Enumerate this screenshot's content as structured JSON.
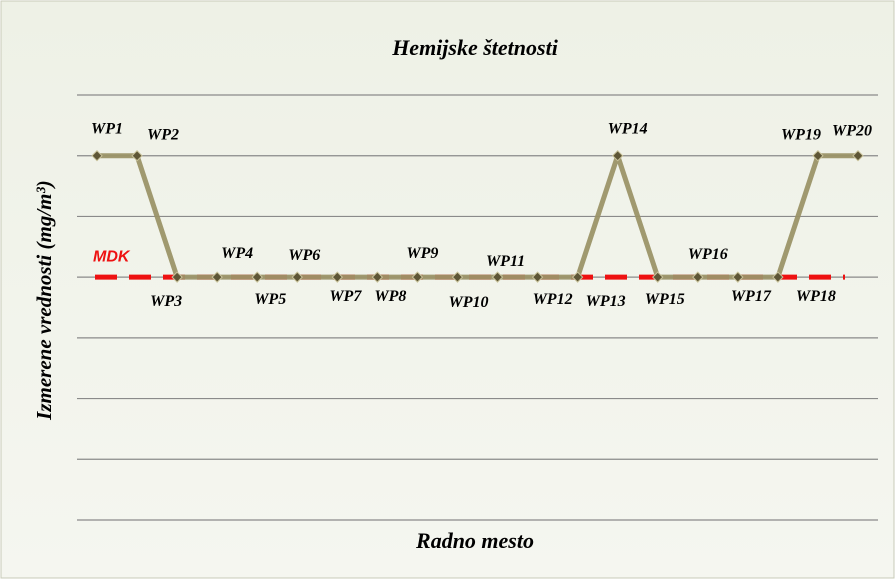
{
  "chart_data": {
    "type": "line",
    "title": "Hemijske štetnosti",
    "xlabel": "Radno mesto",
    "ylabel": "Izmerene vrednosti (mg/m³)",
    "categories": [
      "WP1",
      "WP2",
      "WP3",
      "WP4",
      "WP5",
      "WP6",
      "WP7",
      "WP8",
      "WP9",
      "WP10",
      "WP11",
      "WP12",
      "WP13",
      "WP14",
      "WP15",
      "WP16",
      "WP17",
      "WP18",
      "WP19",
      "WP20"
    ],
    "values": [
      6,
      6,
      4,
      4,
      4,
      4,
      4,
      4,
      4,
      4,
      4,
      4,
      4,
      6,
      4,
      4,
      4,
      4,
      6,
      6
    ],
    "color": "#9b9468",
    "marker_color": "#5e5636",
    "ylim": [
      0,
      7
    ],
    "yticks": [
      0,
      1,
      2,
      3,
      4,
      5,
      6,
      7
    ],
    "grid": true,
    "threshold": {
      "label": "MDK",
      "value": 4,
      "color": "#ee1111"
    }
  }
}
